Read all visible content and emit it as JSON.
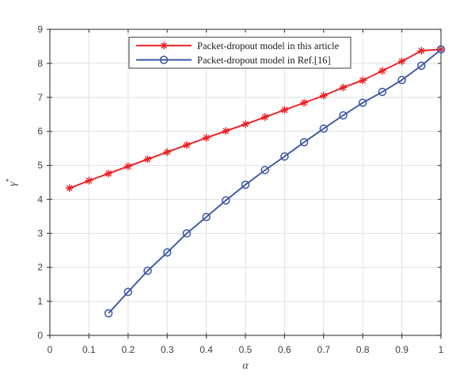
{
  "figure": {
    "background": "#ffffff"
  },
  "colors": {
    "series_red": "#ed2024",
    "series_blue": "#3c56a6",
    "grid": "#e0e0e0",
    "axis_box": "#4a4a4a",
    "tick_text": "#3f3f3f",
    "legend_border": "#4a4a4a",
    "legend_background": "#ffffff"
  },
  "chart_data": {
    "type": "line",
    "title": "",
    "xlabel": "α",
    "ylabel": "γ*",
    "ylabel_base": "γ",
    "ylabel_sup": "*",
    "xlim": [
      0,
      1
    ],
    "ylim": [
      0,
      9
    ],
    "grid": true,
    "legend_position": "top-center-inside",
    "x_ticks": [
      0,
      0.1,
      0.2,
      0.3,
      0.4,
      0.5,
      0.6,
      0.7,
      0.8,
      0.9,
      1
    ],
    "x_tick_labels": [
      "0",
      "0.1",
      "0.2",
      "0.3",
      "0.4",
      "0.5",
      "0.6",
      "0.7",
      "0.8",
      "0.9",
      "1"
    ],
    "y_ticks": [
      0,
      1,
      2,
      3,
      4,
      5,
      6,
      7,
      8,
      9
    ],
    "y_tick_labels": [
      "0",
      "1",
      "2",
      "3",
      "4",
      "5",
      "6",
      "7",
      "8",
      "9"
    ],
    "series": [
      {
        "name": "Packet-dropout model in this article",
        "color": "#ed2024",
        "marker": "asterisk",
        "x": [
          0.05,
          0.1,
          0.15,
          0.2,
          0.25,
          0.3,
          0.35,
          0.4,
          0.45,
          0.5,
          0.55,
          0.6,
          0.65,
          0.7,
          0.75,
          0.8,
          0.85,
          0.9,
          0.95,
          1.0
        ],
        "values": [
          4.33,
          4.55,
          4.76,
          4.97,
          5.18,
          5.39,
          5.6,
          5.81,
          6.01,
          6.21,
          6.42,
          6.63,
          6.84,
          7.05,
          7.29,
          7.5,
          7.78,
          8.06,
          8.37,
          8.41
        ]
      },
      {
        "name": "Packet-dropout model in Ref.[16]",
        "color": "#3c56a6",
        "marker": "circle",
        "x": [
          0.15,
          0.2,
          0.25,
          0.3,
          0.35,
          0.4,
          0.45,
          0.5,
          0.55,
          0.6,
          0.65,
          0.7,
          0.75,
          0.8,
          0.85,
          0.9,
          0.95,
          1.0
        ],
        "values": [
          0.65,
          1.28,
          1.9,
          2.44,
          3.0,
          3.48,
          3.97,
          4.43,
          4.86,
          5.26,
          5.68,
          6.08,
          6.47,
          6.84,
          7.16,
          7.51,
          7.93,
          8.41
        ]
      }
    ]
  }
}
